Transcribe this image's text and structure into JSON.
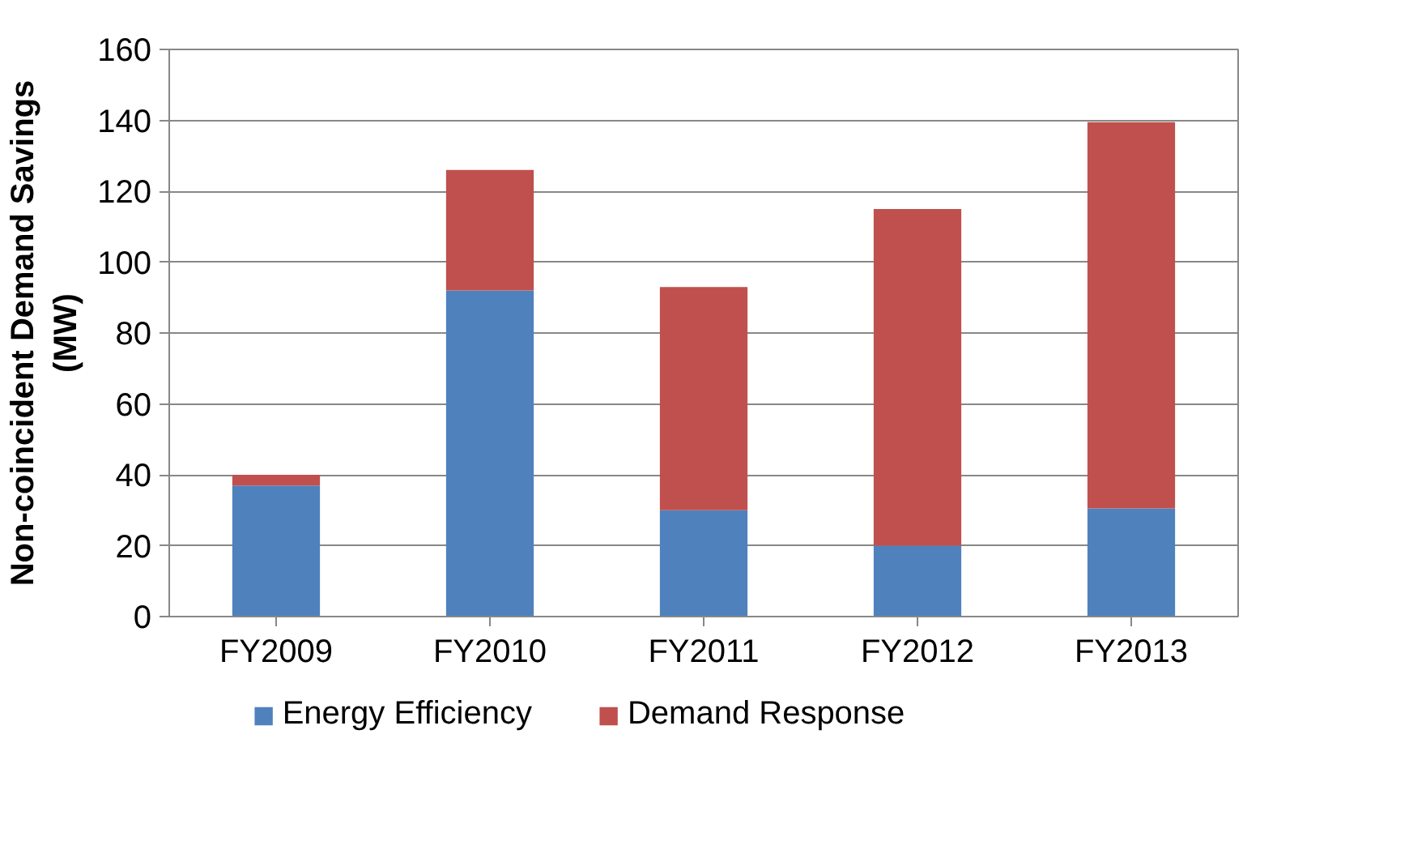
{
  "chart_data": {
    "type": "bar",
    "stacked": true,
    "ylabel": "Non-coincident Demand Savings (MW)",
    "categories": [
      "FY2009",
      "FY2010",
      "FY2011",
      "FY2012",
      "FY2013"
    ],
    "series": [
      {
        "name": "Energy Efficiency",
        "color": "#4f81bd",
        "values": [
          37,
          92,
          30,
          20,
          30.5
        ]
      },
      {
        "name": "Demand Response",
        "color": "#c0504d",
        "values": [
          3,
          34,
          63,
          95,
          109
        ]
      }
    ],
    "ylim": [
      0,
      160
    ],
    "yticks": [
      0,
      20,
      40,
      60,
      80,
      100,
      120,
      140,
      160
    ],
    "grid": "y",
    "legend": "bottom"
  }
}
